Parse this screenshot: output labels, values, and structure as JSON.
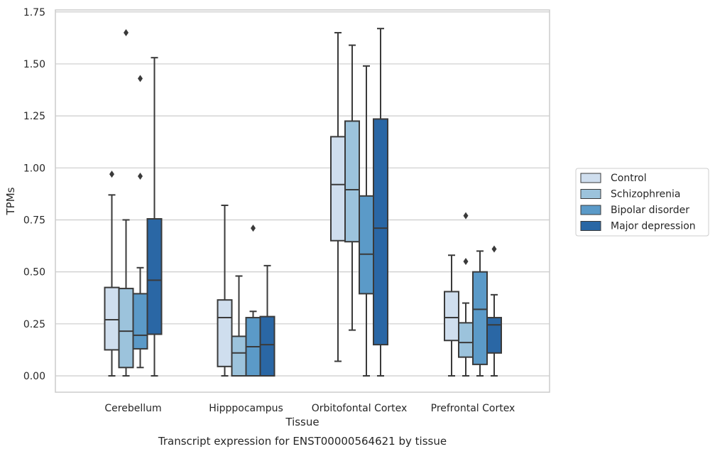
{
  "chart_data": {
    "type": "box",
    "xlabel": "Tissue",
    "ylabel": "TPMs",
    "caption": "Transcript expression for ENST00000564621 by tissue",
    "ylim": [
      -0.08,
      1.76
    ],
    "yticks": [
      "0.00",
      "0.25",
      "0.50",
      "0.75",
      "1.00",
      "1.25",
      "1.50",
      "1.75"
    ],
    "grid": "horizontal",
    "legend_placement": "right",
    "categories": [
      "Cerebellum",
      "Hipppocampus",
      "Orbitofontal Cortex",
      "Prefrontal Cortex"
    ],
    "series": [
      {
        "name": "Control",
        "color": "#cfdeee",
        "boxes": [
          {
            "whislo": 0.0,
            "q1": 0.125,
            "med": 0.27,
            "q3": 0.425,
            "whishi": 0.87,
            "fliers": [
              0.97
            ]
          },
          {
            "whislo": 0.0,
            "q1": 0.045,
            "med": 0.28,
            "q3": 0.365,
            "whishi": 0.82,
            "fliers": []
          },
          {
            "whislo": 0.07,
            "q1": 0.65,
            "med": 0.92,
            "q3": 1.15,
            "whishi": 1.65,
            "fliers": []
          },
          {
            "whislo": 0.0,
            "q1": 0.17,
            "med": 0.28,
            "q3": 0.405,
            "whishi": 0.58,
            "fliers": []
          }
        ]
      },
      {
        "name": "Schizophrenia",
        "color": "#9cc3dc",
        "boxes": [
          {
            "whislo": 0.0,
            "q1": 0.04,
            "med": 0.215,
            "q3": 0.42,
            "whishi": 0.75,
            "fliers": [
              1.65
            ]
          },
          {
            "whislo": 0.0,
            "q1": 0.0,
            "med": 0.11,
            "q3": 0.19,
            "whishi": 0.48,
            "fliers": []
          },
          {
            "whislo": 0.22,
            "q1": 0.645,
            "med": 0.895,
            "q3": 1.225,
            "whishi": 1.59,
            "fliers": []
          },
          {
            "whislo": 0.0,
            "q1": 0.09,
            "med": 0.16,
            "q3": 0.255,
            "whishi": 0.35,
            "fliers": [
              0.55,
              0.77
            ]
          }
        ]
      },
      {
        "name": "Bipolar disorder",
        "color": "#5b9ac8",
        "boxes": [
          {
            "whislo": 0.04,
            "q1": 0.13,
            "med": 0.195,
            "q3": 0.395,
            "whishi": 0.52,
            "fliers": [
              0.96,
              1.43
            ]
          },
          {
            "whislo": 0.0,
            "q1": 0.0,
            "med": 0.14,
            "q3": 0.28,
            "whishi": 0.31,
            "fliers": [
              0.71
            ]
          },
          {
            "whislo": 0.0,
            "q1": 0.395,
            "med": 0.585,
            "q3": 0.865,
            "whishi": 1.49,
            "fliers": []
          },
          {
            "whislo": 0.0,
            "q1": 0.055,
            "med": 0.32,
            "q3": 0.5,
            "whishi": 0.6,
            "fliers": []
          }
        ]
      },
      {
        "name": "Major depression",
        "color": "#2a67a5",
        "boxes": [
          {
            "whislo": 0.0,
            "q1": 0.2,
            "med": 0.46,
            "q3": 0.755,
            "whishi": 1.53,
            "fliers": []
          },
          {
            "whislo": 0.0,
            "q1": 0.0,
            "med": 0.15,
            "q3": 0.285,
            "whishi": 0.53,
            "fliers": []
          },
          {
            "whislo": 0.0,
            "q1": 0.15,
            "med": 0.71,
            "q3": 1.235,
            "whishi": 1.67,
            "fliers": []
          },
          {
            "whislo": 0.0,
            "q1": 0.11,
            "med": 0.245,
            "q3": 0.28,
            "whishi": 0.39,
            "fliers": [
              0.61
            ]
          }
        ]
      }
    ]
  }
}
